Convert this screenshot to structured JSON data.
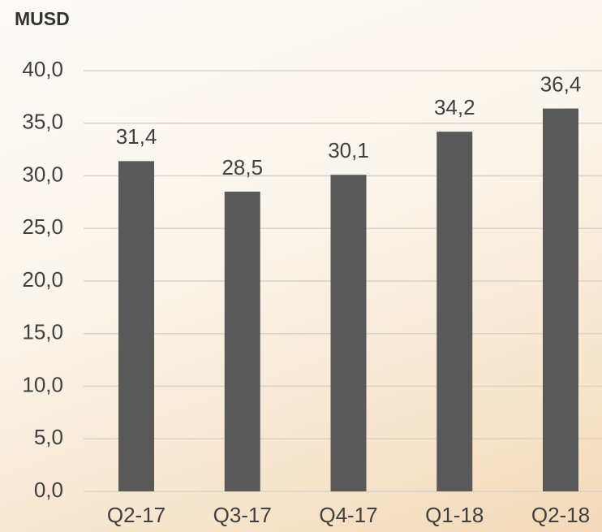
{
  "chart_data": {
    "type": "bar",
    "title": "MUSD",
    "categories": [
      "Q2-17",
      "Q3-17",
      "Q4-17",
      "Q1-18",
      "Q2-18"
    ],
    "values": [
      31.4,
      28.5,
      30.1,
      34.2,
      36.4
    ],
    "value_labels": [
      "31,4",
      "28,5",
      "30,1",
      "34,2",
      "36,4"
    ],
    "color": "#595959",
    "ylim": [
      0,
      40
    ],
    "yticks": [
      {
        "value": 0,
        "label": "0,0"
      },
      {
        "value": 5,
        "label": "5,0"
      },
      {
        "value": 10,
        "label": "10,0"
      },
      {
        "value": 15,
        "label": "15,0"
      },
      {
        "value": 20,
        "label": "20,0"
      },
      {
        "value": 25,
        "label": "25,0"
      },
      {
        "value": 30,
        "label": "30,0"
      },
      {
        "value": 35,
        "label": "35,0"
      },
      {
        "value": 40,
        "label": "40,0"
      }
    ],
    "grid": true
  }
}
